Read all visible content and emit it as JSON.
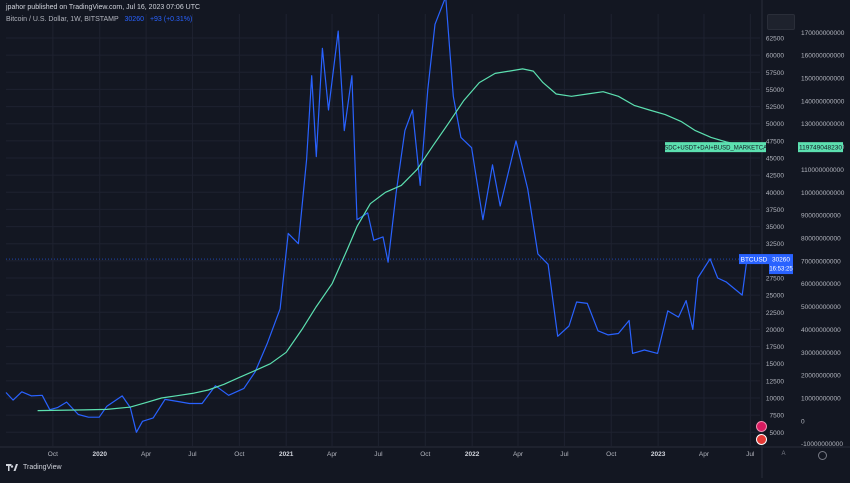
{
  "header": {
    "publisher_line": "jpahor published on TradingView.com, Jul 16, 2023 07:06 UTC"
  },
  "legend": {
    "symbol": "Bitcoin / U.S. Dollar, 1W, BITSTAMP",
    "value": "30260",
    "change": "+93 (+0.31%)"
  },
  "footer": {
    "brand": "TradingView"
  },
  "colors": {
    "background": "#131722",
    "btc_line": "#2962ff",
    "stable_line": "#5ce0b0",
    "axis_text": "#b2b5be"
  },
  "chart_data": {
    "type": "line",
    "x_ticks": [
      "Oct",
      "2020",
      "Apr",
      "Jul",
      "Oct",
      "2021",
      "Apr",
      "Jul",
      "Oct",
      "2022",
      "Apr",
      "Jul",
      "Oct",
      "2023",
      "Apr",
      "Jul"
    ],
    "year_ticks": [
      "2020",
      "2021",
      "2022",
      "2023"
    ],
    "y_left": {
      "ticks": [
        5000,
        7500,
        10000,
        12500,
        15000,
        17500,
        20000,
        22500,
        25000,
        27500,
        30000,
        32500,
        35000,
        37500,
        40000,
        42500,
        45000,
        47500,
        50000,
        52500,
        55000,
        57500,
        60000,
        62500
      ],
      "range": [
        3000,
        66000
      ]
    },
    "y_right": {
      "ticks": [
        170000000000,
        160000000000,
        150000000000,
        140000000000,
        130000000000,
        120000000000,
        110000000000,
        100000000000,
        90000000000,
        80000000000,
        70000000000,
        60000000000,
        50000000000,
        40000000000,
        30000000000,
        20000000000,
        10000000000,
        0,
        -10000000000
      ],
      "tick_labels": [
        "170000000000",
        "160000000000",
        "150000000000",
        "140000000000",
        "130000000000",
        "120000000000",
        "110000000000",
        "100000000000",
        "90000000000",
        "80000000000",
        "70000000000",
        "60000000000",
        "50000000000",
        "40000000000",
        "30000000000",
        "20000000000",
        "10000000000",
        "0",
        "-10000000000"
      ],
      "range": [
        -11000000000,
        178000000000
      ]
    },
    "x_range": [
      "2019-07-01",
      "2023-07-20"
    ],
    "series": [
      {
        "name": "BTCUSD",
        "axis": "left",
        "color": "#2962ff",
        "last_label": "BTCUSD",
        "last_value": "30260",
        "countdown": "16:53:25",
        "points": [
          [
            "2019-07-01",
            10800
          ],
          [
            "2019-07-15",
            9700
          ],
          [
            "2019-08-01",
            10900
          ],
          [
            "2019-08-20",
            10300
          ],
          [
            "2019-09-10",
            10400
          ],
          [
            "2019-09-25",
            8300
          ],
          [
            "2019-10-10",
            8600
          ],
          [
            "2019-10-28",
            9400
          ],
          [
            "2019-11-20",
            7600
          ],
          [
            "2019-12-10",
            7200
          ],
          [
            "2019-12-31",
            7200
          ],
          [
            "2020-01-15",
            8800
          ],
          [
            "2020-02-14",
            10300
          ],
          [
            "2020-03-01",
            8600
          ],
          [
            "2020-03-13",
            5000
          ],
          [
            "2020-03-25",
            6600
          ],
          [
            "2020-04-15",
            7100
          ],
          [
            "2020-05-08",
            9800
          ],
          [
            "2020-06-01",
            9500
          ],
          [
            "2020-06-25",
            9200
          ],
          [
            "2020-07-20",
            9200
          ],
          [
            "2020-08-15",
            11800
          ],
          [
            "2020-09-10",
            10400
          ],
          [
            "2020-10-10",
            11400
          ],
          [
            "2020-11-01",
            13800
          ],
          [
            "2020-11-25",
            18000
          ],
          [
            "2020-12-20",
            23000
          ],
          [
            "2021-01-05",
            34000
          ],
          [
            "2021-01-25",
            32500
          ],
          [
            "2021-02-10",
            44800
          ],
          [
            "2021-02-20",
            57000
          ],
          [
            "2021-03-01",
            45200
          ],
          [
            "2021-03-13",
            61000
          ],
          [
            "2021-03-25",
            52000
          ],
          [
            "2021-04-13",
            63500
          ],
          [
            "2021-04-25",
            49000
          ],
          [
            "2021-05-10",
            57000
          ],
          [
            "2021-05-20",
            36000
          ],
          [
            "2021-06-10",
            37000
          ],
          [
            "2021-06-22",
            33000
          ],
          [
            "2021-07-10",
            33500
          ],
          [
            "2021-07-20",
            29800
          ],
          [
            "2021-08-05",
            40000
          ],
          [
            "2021-08-22",
            49000
          ],
          [
            "2021-09-06",
            52000
          ],
          [
            "2021-09-21",
            41000
          ],
          [
            "2021-10-06",
            55000
          ],
          [
            "2021-10-20",
            64500
          ],
          [
            "2021-11-10",
            68500
          ],
          [
            "2021-11-25",
            54000
          ],
          [
            "2021-12-10",
            48000
          ],
          [
            "2021-12-31",
            46500
          ],
          [
            "2022-01-22",
            36000
          ],
          [
            "2022-02-10",
            44000
          ],
          [
            "2022-02-25",
            38000
          ],
          [
            "2022-03-28",
            47500
          ],
          [
            "2022-04-20",
            40500
          ],
          [
            "2022-05-10",
            31000
          ],
          [
            "2022-05-30",
            29500
          ],
          [
            "2022-06-18",
            19000
          ],
          [
            "2022-07-10",
            20500
          ],
          [
            "2022-07-25",
            24000
          ],
          [
            "2022-08-15",
            23800
          ],
          [
            "2022-09-05",
            19800
          ],
          [
            "2022-09-25",
            19200
          ],
          [
            "2022-10-15",
            19400
          ],
          [
            "2022-11-05",
            21300
          ],
          [
            "2022-11-12",
            16500
          ],
          [
            "2022-12-05",
            17000
          ],
          [
            "2022-12-31",
            16500
          ],
          [
            "2023-01-20",
            22700
          ],
          [
            "2023-02-10",
            21800
          ],
          [
            "2023-02-25",
            24200
          ],
          [
            "2023-03-10",
            20000
          ],
          [
            "2023-03-20",
            27500
          ],
          [
            "2023-04-13",
            30300
          ],
          [
            "2023-04-28",
            27500
          ],
          [
            "2023-05-15",
            26900
          ],
          [
            "2023-06-15",
            25000
          ],
          [
            "2023-06-25",
            30600
          ],
          [
            "2023-07-16",
            30260
          ]
        ]
      },
      {
        "name": "USDC+USDT+DAI+BUSD_MARKETCAP",
        "axis": "right",
        "color": "#5ce0b0",
        "last_label": "USDC+USDT+DAI+BUSD_MARKETCAP",
        "last_value": "119749048230",
        "points": [
          [
            "2019-09-01",
            4500000000
          ],
          [
            "2019-12-01",
            4800000000
          ],
          [
            "2020-01-15",
            5000000000
          ],
          [
            "2020-03-01",
            6000000000
          ],
          [
            "2020-04-01",
            8000000000
          ],
          [
            "2020-05-01",
            10000000000
          ],
          [
            "2020-06-01",
            11000000000
          ],
          [
            "2020-07-01",
            12000000000
          ],
          [
            "2020-08-01",
            13500000000
          ],
          [
            "2020-09-01",
            16000000000
          ],
          [
            "2020-10-01",
            19000000000
          ],
          [
            "2020-11-01",
            22000000000
          ],
          [
            "2020-12-01",
            25000000000
          ],
          [
            "2021-01-01",
            30000000000
          ],
          [
            "2021-02-01",
            40000000000
          ],
          [
            "2021-03-01",
            50000000000
          ],
          [
            "2021-04-01",
            60000000000
          ],
          [
            "2021-05-01",
            75000000000
          ],
          [
            "2021-05-20",
            85000000000
          ],
          [
            "2021-06-15",
            95000000000
          ],
          [
            "2021-07-15",
            100000000000
          ],
          [
            "2021-08-15",
            103000000000
          ],
          [
            "2021-09-15",
            110000000000
          ],
          [
            "2021-10-15",
            120000000000
          ],
          [
            "2021-11-15",
            130000000000
          ],
          [
            "2021-12-15",
            140000000000
          ],
          [
            "2022-01-15",
            148000000000
          ],
          [
            "2022-02-15",
            152000000000
          ],
          [
            "2022-03-15",
            153000000000
          ],
          [
            "2022-04-10",
            154000000000
          ],
          [
            "2022-05-01",
            153000000000
          ],
          [
            "2022-05-20",
            148000000000
          ],
          [
            "2022-06-15",
            143000000000
          ],
          [
            "2022-07-15",
            142000000000
          ],
          [
            "2022-08-15",
            143000000000
          ],
          [
            "2022-09-15",
            144000000000
          ],
          [
            "2022-10-15",
            142000000000
          ],
          [
            "2022-11-15",
            138000000000
          ],
          [
            "2022-12-15",
            136000000000
          ],
          [
            "2023-01-15",
            134000000000
          ],
          [
            "2023-02-15",
            131000000000
          ],
          [
            "2023-03-15",
            127000000000
          ],
          [
            "2023-04-15",
            124000000000
          ],
          [
            "2023-05-15",
            122000000000
          ],
          [
            "2023-06-15",
            120500000000
          ],
          [
            "2023-07-16",
            119749048230
          ]
        ]
      }
    ],
    "grid": true,
    "title": "",
    "xlabel": "",
    "ylabel": ""
  }
}
